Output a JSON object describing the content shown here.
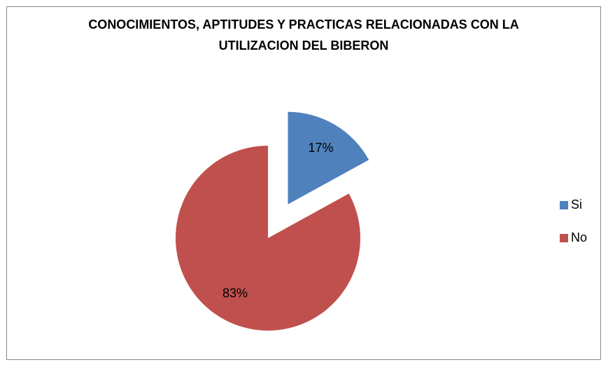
{
  "chart_data": {
    "type": "pie",
    "title": "CONOCIMIENTOS, APTITUDES Y PRACTICAS RELACIONADAS CON LA UTILIZACION DEL BIBERON",
    "categories": [
      "Si",
      "No"
    ],
    "values": [
      17,
      83
    ],
    "value_labels": [
      "17%",
      "83%"
    ],
    "colors": [
      "#4f81bd",
      "#c0504d"
    ],
    "legend": "right"
  }
}
